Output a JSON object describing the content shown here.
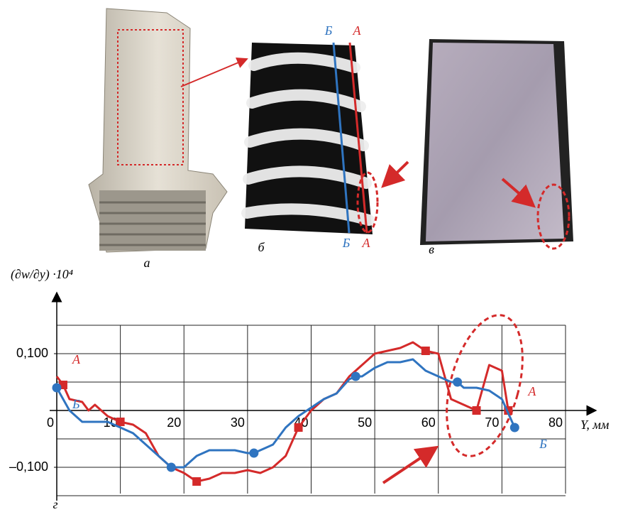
{
  "chart_data": {
    "type": "line",
    "panel_labels": [
      "а",
      "б",
      "в",
      "г"
    ],
    "fringe_labels": [
      "Б",
      "А"
    ],
    "ylabel": "(∂w/∂y) ·10⁴",
    "xlabel": "Y, мм",
    "xlim": [
      0,
      80
    ],
    "ylim": [
      -0.15,
      0.15
    ],
    "xticks": [
      0,
      10,
      20,
      30,
      40,
      50,
      60,
      70,
      80
    ],
    "yticks": [
      {
        "value": 0.1,
        "label": "0,100"
      },
      {
        "value": -0.1,
        "label": "–0,100"
      }
    ],
    "ygrid": [
      -0.15,
      -0.1,
      -0.05,
      0,
      0.05,
      0.1,
      0.15
    ],
    "grid": true,
    "series": [
      {
        "name": "А",
        "color": "#d42a2a",
        "marker": "square",
        "x": [
          0,
          1,
          2,
          4,
          5,
          6,
          8,
          10,
          12,
          14,
          16,
          18,
          20,
          22,
          24,
          26,
          28,
          30,
          32,
          34,
          36,
          38,
          40,
          42,
          44,
          46,
          48,
          50,
          52,
          54,
          56,
          58,
          60,
          62,
          64,
          66,
          68,
          70,
          71
        ],
        "values": [
          0.06,
          0.045,
          0.02,
          0.015,
          0.0,
          0.01,
          -0.01,
          -0.02,
          -0.025,
          -0.04,
          -0.08,
          -0.1,
          -0.11,
          -0.125,
          -0.12,
          -0.11,
          -0.11,
          -0.105,
          -0.11,
          -0.1,
          -0.08,
          -0.03,
          0.0,
          0.02,
          0.03,
          0.06,
          0.08,
          0.1,
          0.105,
          0.11,
          0.12,
          0.105,
          0.1,
          0.02,
          0.01,
          0.0,
          0.08,
          0.07,
          0.0
        ],
        "marker_indices": [
          1,
          7,
          13,
          21,
          31,
          35,
          38
        ]
      },
      {
        "name": "Б",
        "color": "#2f74c0",
        "marker": "circle",
        "x": [
          0,
          1,
          2,
          4,
          6,
          8,
          10,
          12,
          14,
          16,
          18,
          20,
          22,
          24,
          26,
          28,
          30,
          31,
          32,
          34,
          36,
          38,
          40,
          42,
          44,
          46,
          47,
          48,
          50,
          52,
          54,
          56,
          58,
          60,
          62,
          63,
          64,
          66,
          68,
          70,
          72
        ],
        "values": [
          0.04,
          0.02,
          0.0,
          -0.02,
          -0.02,
          -0.02,
          -0.03,
          -0.04,
          -0.06,
          -0.08,
          -0.1,
          -0.1,
          -0.08,
          -0.07,
          -0.07,
          -0.07,
          -0.075,
          -0.075,
          -0.07,
          -0.06,
          -0.03,
          -0.01,
          0.005,
          0.02,
          0.03,
          0.055,
          0.06,
          0.06,
          0.075,
          0.085,
          0.085,
          0.09,
          0.07,
          0.06,
          0.05,
          0.05,
          0.04,
          0.04,
          0.035,
          0.02,
          -0.03
        ],
        "marker_indices": [
          0,
          10,
          17,
          26,
          35,
          40
        ]
      }
    ]
  }
}
